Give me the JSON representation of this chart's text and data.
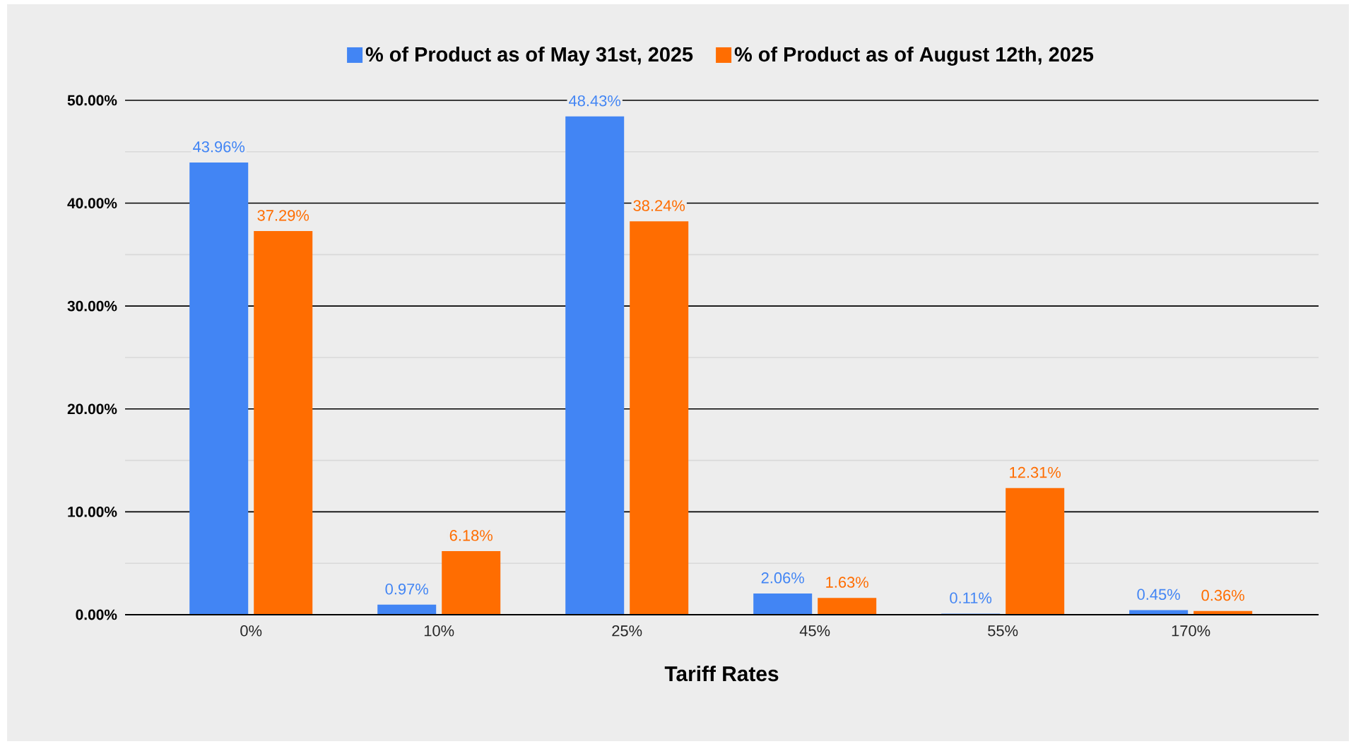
{
  "chart_data": {
    "type": "bar",
    "xlabel": "Tariff Rates",
    "categories": [
      "0%",
      "10%",
      "25%",
      "45%",
      "55%",
      "170%"
    ],
    "series": [
      {
        "name": "% of Product as of May 31st, 2025",
        "color": "#4285f4",
        "values": [
          43.96,
          0.97,
          48.43,
          2.06,
          0.11,
          0.45
        ],
        "value_labels": [
          "43.96%",
          "0.97%",
          "48.43%",
          "2.06%",
          "0.11%",
          "0.45%"
        ]
      },
      {
        "name": "% of Product as of August 12th, 2025",
        "color": "#ff6d01",
        "values": [
          37.29,
          6.18,
          38.24,
          1.63,
          12.31,
          0.36
        ],
        "value_labels": [
          "37.29%",
          "6.18%",
          "38.24%",
          "1.63%",
          "12.31%",
          "0.36%"
        ]
      }
    ],
    "ylim": [
      0,
      50
    ],
    "yticks": [
      {
        "value": 0,
        "label": "0.00%"
      },
      {
        "value": 5,
        "label": null
      },
      {
        "value": 10,
        "label": "10.00%"
      },
      {
        "value": 15,
        "label": null
      },
      {
        "value": 20,
        "label": "20.00%"
      },
      {
        "value": 25,
        "label": null
      },
      {
        "value": 30,
        "label": "30.00%"
      },
      {
        "value": 35,
        "label": null
      },
      {
        "value": 40,
        "label": "40.00%"
      },
      {
        "value": 45,
        "label": null
      },
      {
        "value": 50,
        "label": "50.00%"
      }
    ],
    "grid": true,
    "legend": "top"
  }
}
